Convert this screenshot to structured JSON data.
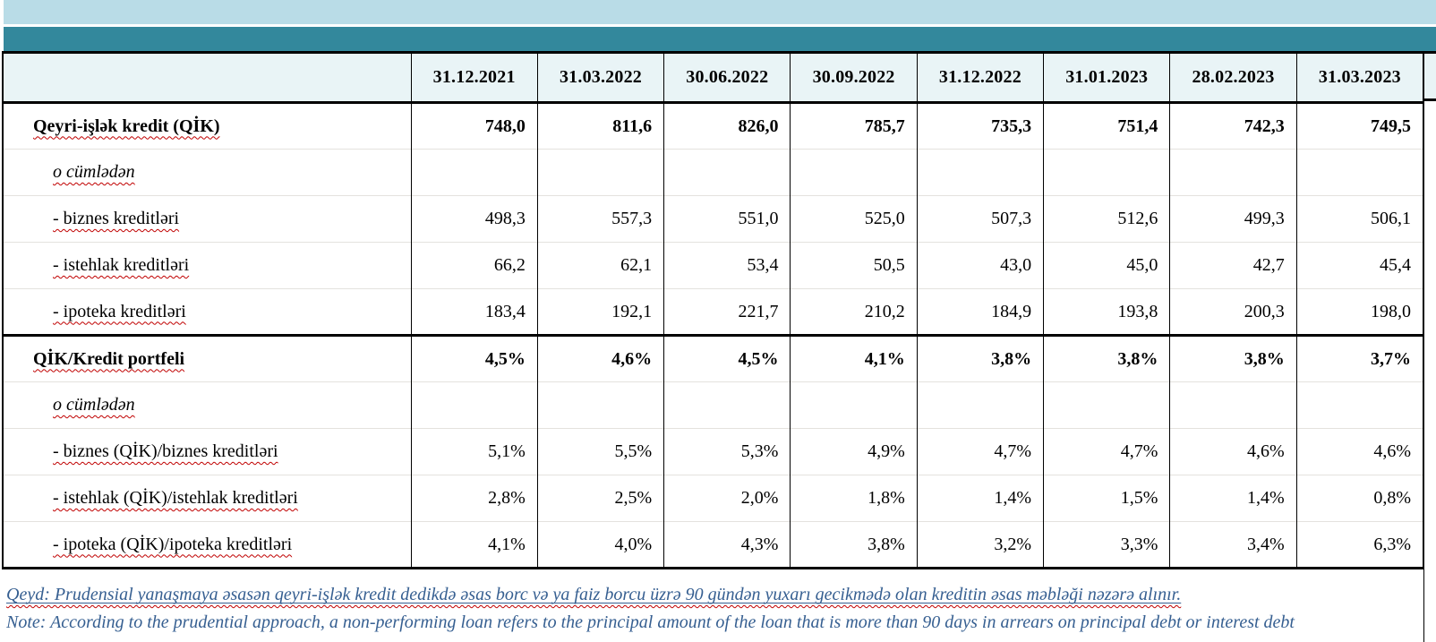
{
  "colors": {
    "band_light": "#b9dce7",
    "band_teal": "#33889c",
    "table_header_bg": "#e9f4f6",
    "note_text": "#365f91",
    "spellcheck_squiggle": "#c00000"
  },
  "table": {
    "columns": [
      "31.12.2021",
      "31.03.2022",
      "30.06.2022",
      "30.09.2022",
      "31.12.2022",
      "31.01.2023",
      "28.02.2023",
      "31.03.2023"
    ],
    "rows": [
      {
        "label": "Qeyri-işlək kredit (QİK)",
        "bold": true,
        "indent": "main",
        "values": [
          "748,0",
          "811,6",
          "826,0",
          "785,7",
          "735,3",
          "751,4",
          "742,3",
          "749,5"
        ]
      },
      {
        "label": "o cümlədən",
        "italic": true,
        "indent": "sub",
        "values": [
          "",
          "",
          "",
          "",
          "",
          "",
          "",
          ""
        ]
      },
      {
        "label": "- biznes kreditləri",
        "indent": "sub",
        "values": [
          "498,3",
          "557,3",
          "551,0",
          "525,0",
          "507,3",
          "512,6",
          "499,3",
          "506,1"
        ]
      },
      {
        "label": "- istehlak kreditləri",
        "indent": "sub",
        "values": [
          "66,2",
          "62,1",
          "53,4",
          "50,5",
          "43,0",
          "45,0",
          "42,7",
          "45,4"
        ]
      },
      {
        "label": "- ipoteka kreditləri",
        "indent": "sub",
        "values": [
          "183,4",
          "192,1",
          "221,7",
          "210,2",
          "184,9",
          "193,8",
          "200,3",
          "198,0"
        ]
      },
      {
        "label": "QİK/Kredit portfeli",
        "bold": true,
        "indent": "main",
        "section_start": true,
        "values": [
          "4,5%",
          "4,6%",
          "4,5%",
          "4,1%",
          "3,8%",
          "3,8%",
          "3,8%",
          "3,7%"
        ]
      },
      {
        "label": "o cümlədən",
        "italic": true,
        "indent": "sub",
        "values": [
          "",
          "",
          "",
          "",
          "",
          "",
          "",
          ""
        ]
      },
      {
        "label": "- biznes (QİK)/biznes kreditləri",
        "indent": "sub",
        "values": [
          "5,1%",
          "5,5%",
          "5,3%",
          "4,9%",
          "4,7%",
          "4,7%",
          "4,6%",
          "4,6%"
        ]
      },
      {
        "label": "- istehlak (QİK)/istehlak kreditləri",
        "indent": "sub",
        "values": [
          "2,8%",
          "2,5%",
          "2,0%",
          "1,8%",
          "1,4%",
          "1,5%",
          "1,4%",
          "0,8%"
        ]
      },
      {
        "label": "- ipoteka (QİK)/ipoteka kreditləri",
        "indent": "sub",
        "values": [
          "4,1%",
          "4,0%",
          "4,3%",
          "3,8%",
          "3,2%",
          "3,3%",
          "3,4%",
          "6,3%"
        ]
      }
    ]
  },
  "notes": {
    "qeyd": "Qeyd: Prudensial yanaşmaya əsasən qeyri-işlək kredit dedikdə əsas borc və ya faiz borcu üzrə 90 gündən yuxarı gecikmədə olan kreditin əsas məbləği nəzərə alınır.",
    "note": "Note: According to the prudential approach, a non-performing loan refers to the principal amount of the loan that is more than 90 days in arrears on principal debt or interest debt"
  }
}
